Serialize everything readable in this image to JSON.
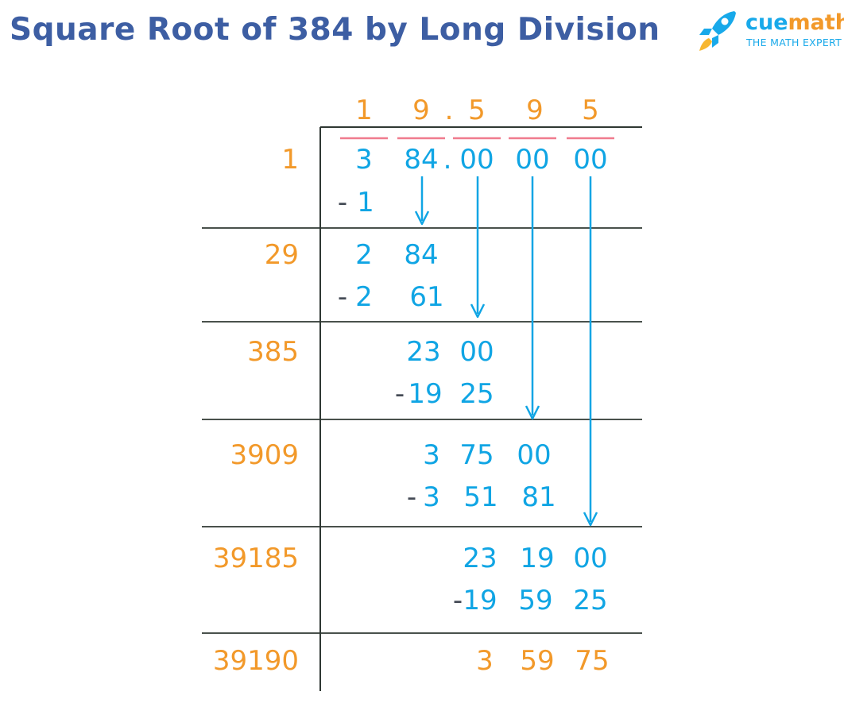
{
  "title": "Square Root of 384 by Long Division",
  "logo": {
    "name_part1": "cue",
    "name_part2": "math",
    "tagline": "THE MATH EXPERT"
  },
  "colors": {
    "title": "#3d5ea3",
    "orange": "#f2992a",
    "blue": "#10a5e4",
    "dark": "#444a55",
    "pink": "#f07b8e",
    "line": "#2f3833",
    "logo_blue": "#18a9ea"
  },
  "quotient": {
    "digits": [
      "1",
      "9",
      "5",
      "9",
      "5"
    ],
    "point": "."
  },
  "dividend": {
    "pairs": [
      "3",
      "84",
      "00",
      "00",
      "00"
    ],
    "point": "."
  },
  "divisors": [
    "1",
    "29",
    "385",
    "3909",
    "39185",
    "39190"
  ],
  "steps": [
    {
      "subtract_sign": "-",
      "subtract": [
        "1"
      ]
    },
    {
      "current": [
        "2",
        "84"
      ],
      "subtract_sign": "-",
      "subtract": [
        "2",
        "61"
      ]
    },
    {
      "current": [
        "23",
        "00"
      ],
      "subtract_sign": "-",
      "subtract": [
        "19",
        "25"
      ]
    },
    {
      "current": [
        "3",
        "75",
        "00"
      ],
      "subtract_sign": "-",
      "subtract": [
        "3",
        "51",
        "81"
      ]
    },
    {
      "current": [
        "23",
        "19",
        "00"
      ],
      "subtract_sign": "-",
      "subtract": [
        "19",
        "59",
        "25"
      ]
    }
  ],
  "remainder": [
    "3",
    "59",
    "75"
  ]
}
